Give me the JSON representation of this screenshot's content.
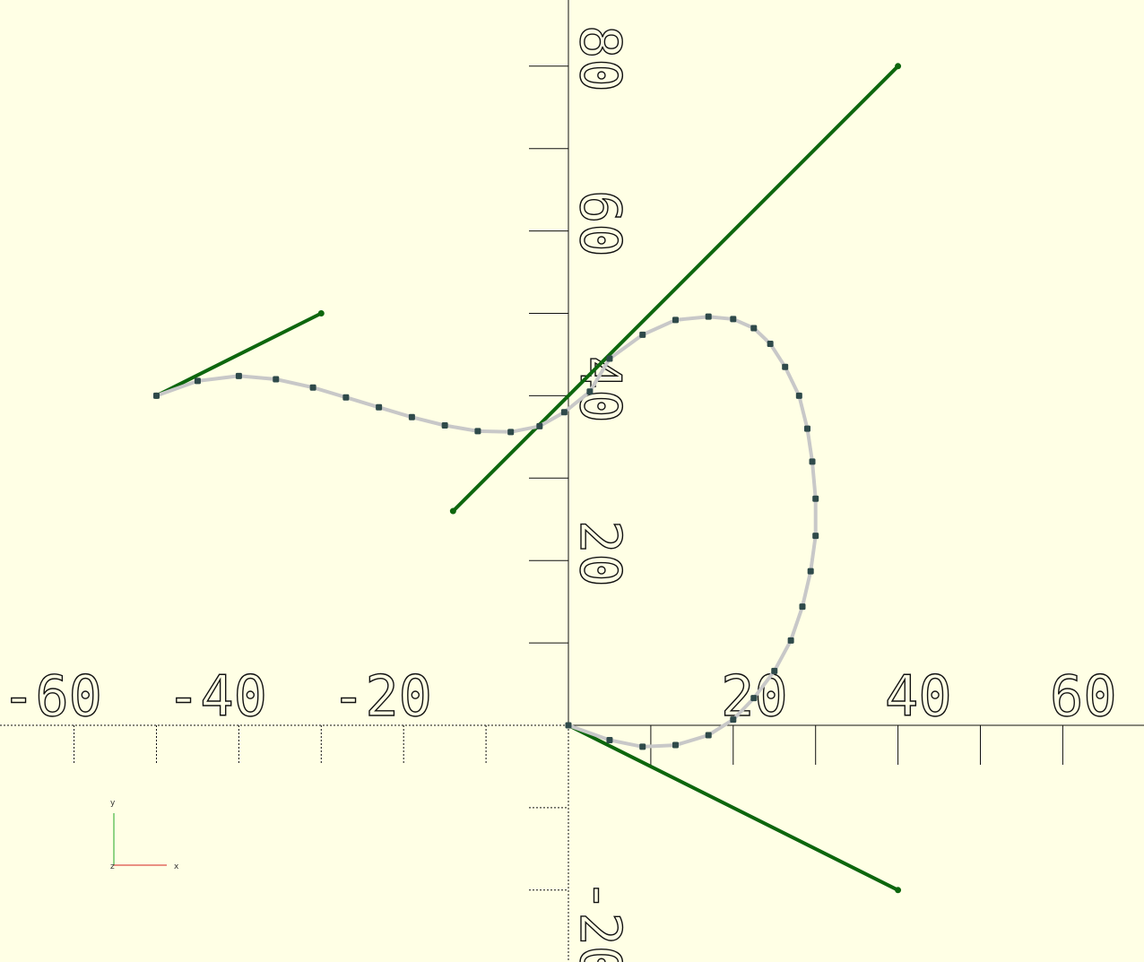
{
  "viewer": {
    "x_tick_labels": [
      "-60",
      "-40",
      "-20",
      "20",
      "40",
      "60"
    ],
    "y_tick_labels": [
      "80",
      "60",
      "40",
      "20",
      "-20"
    ],
    "gizmo": {
      "x_label": "x",
      "y_label": "y",
      "z_label": "z"
    },
    "colors": {
      "background": "#ffffe5",
      "tangent": "#0d660d",
      "curve": "#c8c8c8",
      "node": "#2f4a4a",
      "x_axis_gizmo": "#d62020",
      "y_axis_gizmo": "#22aa22"
    }
  },
  "scene": {
    "x_ticks": [
      -60,
      -50,
      -40,
      -30,
      -20,
      -10,
      10,
      20,
      30,
      40,
      50,
      60
    ],
    "y_ticks": [
      -20,
      -10,
      10,
      20,
      30,
      40,
      50,
      60,
      70,
      80
    ],
    "curve_points": [
      [
        -50,
        40
      ],
      [
        -45,
        41.8
      ],
      [
        -40,
        42.4
      ],
      [
        -35.5,
        42
      ],
      [
        -31,
        41
      ],
      [
        -27,
        39.8
      ],
      [
        -23,
        38.6
      ],
      [
        -19,
        37.4
      ],
      [
        -15,
        36.4
      ],
      [
        -11,
        35.7
      ],
      [
        -7,
        35.6
      ],
      [
        -3.5,
        36.3
      ],
      [
        -0.5,
        38.0
      ],
      [
        2.6,
        40.5
      ],
      [
        5,
        44.5
      ],
      [
        9,
        47.4
      ],
      [
        13,
        49.2
      ],
      [
        17,
        49.6
      ],
      [
        20,
        49.3
      ],
      [
        22.5,
        48.2
      ],
      [
        24.5,
        46.3
      ],
      [
        26.3,
        43.5
      ],
      [
        28,
        40
      ],
      [
        29,
        36
      ],
      [
        29.6,
        32
      ],
      [
        30,
        27.5
      ],
      [
        30,
        23
      ],
      [
        29.4,
        18.7
      ],
      [
        28.4,
        14.4
      ],
      [
        27,
        10.3
      ],
      [
        25,
        6.6
      ],
      [
        22.5,
        3.3
      ],
      [
        20,
        0.7
      ],
      [
        17,
        -1.2
      ],
      [
        13,
        -2.4
      ],
      [
        9,
        -2.6
      ],
      [
        5,
        -1.8
      ],
      [
        0,
        0
      ]
    ],
    "tangents": [
      {
        "from": [
          -50,
          40
        ],
        "to": [
          -30,
          50
        ]
      },
      {
        "from": [
          -14,
          26
        ],
        "to": [
          40,
          80
        ]
      },
      {
        "from": [
          0,
          0
        ],
        "to": [
          40,
          -20
        ]
      }
    ]
  }
}
